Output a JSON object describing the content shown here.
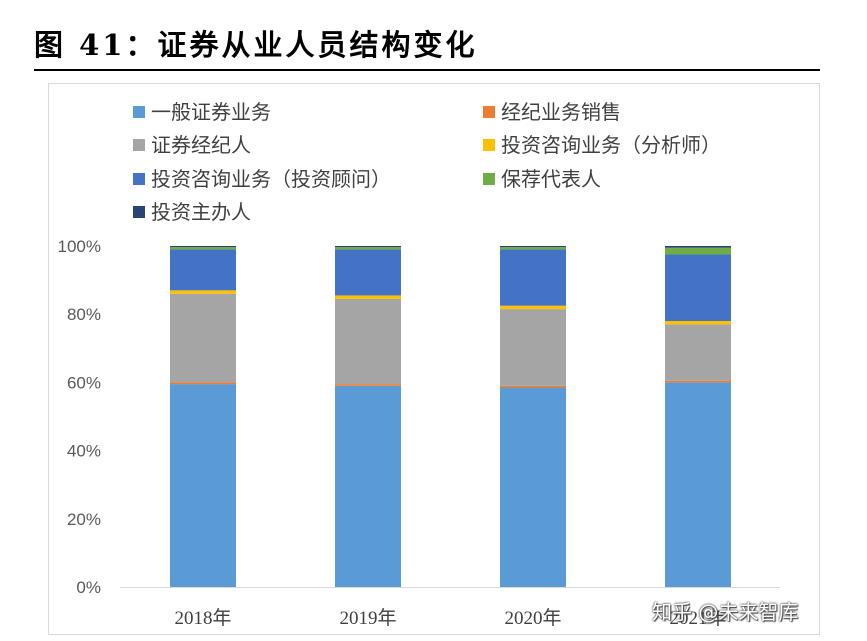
{
  "figure_title": "图 41：证券从业人员结构变化",
  "watermark": "知乎 @未来智库",
  "colors": {
    "一般证券业务": "#5b9bd5",
    "经纪业务销售": "#ed7d31",
    "证券经纪人": "#a5a5a5",
    "投资咨询业务（分析师）": "#ffc000",
    "投资咨询业务（投资顾问）": "#4472c4",
    "保荐代表人": "#70ad47",
    "投资主办人": "#264478"
  },
  "chart_data": {
    "type": "bar",
    "stacked": true,
    "categories": [
      "2018年",
      "2019年",
      "2020年",
      "2021年"
    ],
    "yticks": [
      "0%",
      "20%",
      "40%",
      "60%",
      "80%",
      "100%"
    ],
    "ylim": [
      0,
      100
    ],
    "legend_position": "top",
    "grid": false,
    "series": [
      {
        "name": "一般证券业务",
        "values": [
          59.5,
          59.0,
          58.5,
          60.0
        ]
      },
      {
        "name": "经纪业务销售",
        "values": [
          0.5,
          0.5,
          0.5,
          0.5
        ]
      },
      {
        "name": "证券经纪人",
        "values": [
          26.0,
          25.0,
          22.5,
          16.5
        ]
      },
      {
        "name": "投资咨询业务（分析师）",
        "values": [
          1.0,
          1.0,
          1.0,
          1.0
        ]
      },
      {
        "name": "投资咨询业务（投资顾问）",
        "values": [
          12.0,
          13.5,
          16.5,
          19.5
        ]
      },
      {
        "name": "保荐代表人",
        "values": [
          0.7,
          0.7,
          0.7,
          2.0
        ]
      },
      {
        "name": "投资主办人",
        "values": [
          0.3,
          0.3,
          0.3,
          0.5
        ]
      }
    ]
  }
}
